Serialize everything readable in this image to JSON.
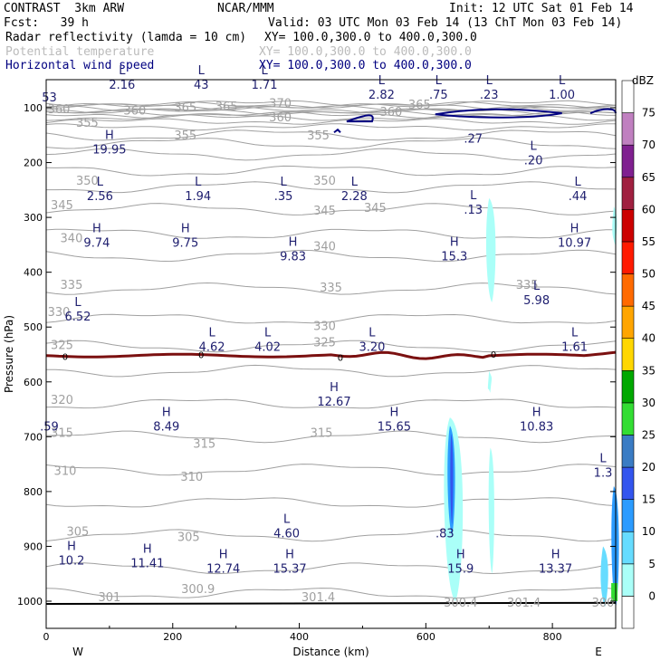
{
  "header": {
    "app": "CONTRAST",
    "model": "3km ARW",
    "org": "NCAR/MMM",
    "init": "Init: 12 UTC Sat 01 Feb 14",
    "fcst_label": "Fcst:",
    "fcst_value": "39 h",
    "valid": "Valid: 03 UTC Mon 03 Feb 14 (13 ChT Mon 03 Feb 14)",
    "field1": "Radar reflectivity (lamda = 10 cm)",
    "field1_xy": "XY= 100.0,300.0 to 400.0,300.0",
    "field2": "Potential temperature",
    "field2_xy": "XY= 100.0,300.0 to 400.0,300.0",
    "field3": "Horizontal wind speed",
    "field3_xy": "XY= 100.0,300.0 to 400.0,300.0"
  },
  "colors": {
    "theta": "#a0a0a0",
    "wind": "#000080",
    "zero_line": "#7b1010",
    "label_navy": "#202070"
  },
  "chart_data": {
    "type": "cross-section",
    "xlabel": "Distance (km)",
    "ylabel": "Pressure (hPa)",
    "xlim": [
      0,
      900
    ],
    "ylim": [
      1045,
      40
    ],
    "x_ticks": [
      0,
      200,
      400,
      600,
      800
    ],
    "y_ticks": [
      100,
      200,
      300,
      400,
      500,
      600,
      700,
      800,
      900,
      1000
    ],
    "west_label": "W",
    "east_label": "E",
    "colorbar": {
      "unit": "dBZ",
      "levels": [
        0,
        5,
        10,
        15,
        20,
        25,
        30,
        35,
        40,
        45,
        50,
        55,
        60,
        65,
        70,
        75
      ],
      "colors": [
        "#ffffff",
        "#aafff8",
        "#66dcff",
        "#2b9bff",
        "#3355ee",
        "#3a7cc4",
        "#33dd33",
        "#00a800",
        "#ffd700",
        "#ffa500",
        "#ff6a00",
        "#ff1a00",
        "#cc0000",
        "#a02040",
        "#802090",
        "#c080c0",
        "#ffffff"
      ]
    },
    "theta_labels": [
      {
        "x": 20,
        "p": 110,
        "text": "360"
      },
      {
        "x": 140,
        "p": 112,
        "text": "360"
      },
      {
        "x": 220,
        "p": 107,
        "text": "365"
      },
      {
        "x": 285,
        "p": 105,
        "text": "365"
      },
      {
        "x": 370,
        "p": 99,
        "text": "370"
      },
      {
        "x": 370,
        "p": 125,
        "text": "360"
      },
      {
        "x": 545,
        "p": 115,
        "text": "360"
      },
      {
        "x": 590,
        "p": 102,
        "text": "365"
      },
      {
        "x": 65,
        "p": 135,
        "text": "355"
      },
      {
        "x": 220,
        "p": 158,
        "text": "355"
      },
      {
        "x": 430,
        "p": 158,
        "text": "355"
      },
      {
        "x": 65,
        "p": 240,
        "text": "350"
      },
      {
        "x": 440,
        "p": 240,
        "text": "350"
      },
      {
        "x": 25,
        "p": 285,
        "text": "345"
      },
      {
        "x": 440,
        "p": 295,
        "text": "345"
      },
      {
        "x": 520,
        "p": 290,
        "text": "345"
      },
      {
        "x": 40,
        "p": 345,
        "text": "340"
      },
      {
        "x": 440,
        "p": 360,
        "text": "340"
      },
      {
        "x": 40,
        "p": 430,
        "text": "335"
      },
      {
        "x": 450,
        "p": 435,
        "text": "335"
      },
      {
        "x": 760,
        "p": 430,
        "text": "335"
      },
      {
        "x": 20,
        "p": 480,
        "text": "330"
      },
      {
        "x": 440,
        "p": 505,
        "text": "330"
      },
      {
        "x": 25,
        "p": 540,
        "text": "325"
      },
      {
        "x": 440,
        "p": 535,
        "text": "325"
      },
      {
        "x": 25,
        "p": 640,
        "text": "320"
      },
      {
        "x": 25,
        "p": 700,
        "text": "315"
      },
      {
        "x": 250,
        "p": 720,
        "text": "315"
      },
      {
        "x": 435,
        "p": 700,
        "text": "315"
      },
      {
        "x": 30,
        "p": 770,
        "text": "310"
      },
      {
        "x": 230,
        "p": 780,
        "text": "310"
      },
      {
        "x": 50,
        "p": 880,
        "text": "305"
      },
      {
        "x": 225,
        "p": 890,
        "text": "305"
      },
      {
        "x": 100,
        "p": 1000,
        "text": "301"
      },
      {
        "x": 240,
        "p": 985,
        "text": "300.9"
      },
      {
        "x": 430,
        "p": 1000,
        "text": "301.4"
      },
      {
        "x": 655,
        "p": 1010,
        "text": "300.4"
      },
      {
        "x": 755,
        "p": 1010,
        "text": "301.4"
      },
      {
        "x": 880,
        "p": 1010,
        "text": "300"
      }
    ],
    "extrema": [
      {
        "x": 120,
        "p": 62,
        "kind": "L",
        "value": "2.16"
      },
      {
        "x": 5,
        "p": 85,
        "kind": "",
        "value": "53"
      },
      {
        "x": 245,
        "p": 62,
        "kind": "L",
        "value": "43"
      },
      {
        "x": 345,
        "p": 62,
        "kind": "L",
        "value": "1.71"
      },
      {
        "x": 530,
        "p": 80,
        "kind": "L",
        "value": "2.82"
      },
      {
        "x": 620,
        "p": 80,
        "kind": "L",
        "value": ".75"
      },
      {
        "x": 700,
        "p": 80,
        "kind": "L",
        "value": ".23"
      },
      {
        "x": 815,
        "p": 80,
        "kind": "L",
        "value": "1.00"
      },
      {
        "x": 100,
        "p": 180,
        "kind": "H",
        "value": "19.95"
      },
      {
        "x": 675,
        "p": 160,
        "kind": "",
        "value": ".27"
      },
      {
        "x": 770,
        "p": 200,
        "kind": "L",
        "value": ".20"
      },
      {
        "x": 85,
        "p": 265,
        "kind": "L",
        "value": "2.56"
      },
      {
        "x": 240,
        "p": 265,
        "kind": "L",
        "value": "1.94"
      },
      {
        "x": 375,
        "p": 265,
        "kind": "L",
        "value": ".35"
      },
      {
        "x": 487,
        "p": 265,
        "kind": "L",
        "value": "2.28"
      },
      {
        "x": 675,
        "p": 290,
        "kind": "L",
        "value": ".13"
      },
      {
        "x": 840,
        "p": 265,
        "kind": "L",
        "value": ".44"
      },
      {
        "x": 80,
        "p": 350,
        "kind": "H",
        "value": "9.74"
      },
      {
        "x": 220,
        "p": 350,
        "kind": "H",
        "value": "9.75"
      },
      {
        "x": 390,
        "p": 375,
        "kind": "H",
        "value": "9.83"
      },
      {
        "x": 645,
        "p": 375,
        "kind": "H",
        "value": "15.3"
      },
      {
        "x": 835,
        "p": 350,
        "kind": "H",
        "value": "10.97"
      },
      {
        "x": 775,
        "p": 455,
        "kind": "L",
        "value": "5.98"
      },
      {
        "x": 50,
        "p": 485,
        "kind": "L",
        "value": "6.52"
      },
      {
        "x": 262,
        "p": 540,
        "kind": "L",
        "value": "4.62"
      },
      {
        "x": 350,
        "p": 540,
        "kind": "L",
        "value": "4.02"
      },
      {
        "x": 515,
        "p": 540,
        "kind": "L",
        "value": "3.20"
      },
      {
        "x": 835,
        "p": 540,
        "kind": "L",
        "value": "1.61"
      },
      {
        "x": 455,
        "p": 640,
        "kind": "H",
        "value": "12.67"
      },
      {
        "x": 5,
        "p": 685,
        "kind": "",
        "value": ".59"
      },
      {
        "x": 190,
        "p": 685,
        "kind": "H",
        "value": "8.49"
      },
      {
        "x": 550,
        "p": 685,
        "kind": "H",
        "value": "15.65"
      },
      {
        "x": 775,
        "p": 685,
        "kind": "H",
        "value": "10.83"
      },
      {
        "x": 880,
        "p": 770,
        "kind": "L",
        "value": "1.3"
      },
      {
        "x": 630,
        "p": 880,
        "kind": "",
        "value": ".83"
      },
      {
        "x": 380,
        "p": 880,
        "kind": "L",
        "value": "4.60"
      },
      {
        "x": 40,
        "p": 930,
        "kind": "H",
        "value": "10.2"
      },
      {
        "x": 160,
        "p": 935,
        "kind": "H",
        "value": "11.41"
      },
      {
        "x": 280,
        "p": 945,
        "kind": "H",
        "value": "12.74"
      },
      {
        "x": 385,
        "p": 945,
        "kind": "H",
        "value": "15.37"
      },
      {
        "x": 655,
        "p": 945,
        "kind": "H",
        "value": "15.9"
      },
      {
        "x": 805,
        "p": 945,
        "kind": "H",
        "value": "13.37"
      }
    ],
    "zero_labels": [
      {
        "x": 30,
        "p": 553,
        "text": "0"
      },
      {
        "x": 245,
        "p": 550,
        "text": "0"
      },
      {
        "x": 465,
        "p": 555,
        "text": "0"
      },
      {
        "x": 707,
        "p": 549,
        "text": "0"
      }
    ]
  }
}
